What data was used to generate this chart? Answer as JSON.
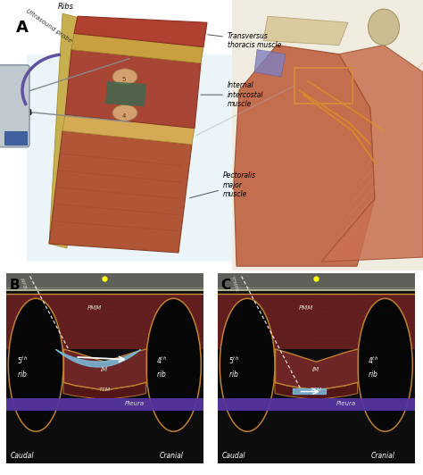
{
  "fig_width": 4.74,
  "fig_height": 5.32,
  "dpi": 100,
  "bg_color": "#ffffff",
  "panel_A_label": "A",
  "panel_B_label": "B",
  "panel_C_label": "C",
  "us_bg": "#0a0a0a",
  "fluid_color": "#7abcdc",
  "muscle_dark": "#5a1a1a",
  "muscle_mid": "#7a2a2a",
  "muscle_light": "#9a4030",
  "fascia_color": "#c89040",
  "pleura_color": "#5535a0",
  "rib_border": "#c08030",
  "label_white": "#ffffff",
  "label_black": "#000000",
  "yellow_dot": "#ffff00",
  "pmm_color": "#7a2020",
  "im_color": "#6a2020",
  "skin_top": "#888878",
  "skin_top2": "#aaaaaa"
}
